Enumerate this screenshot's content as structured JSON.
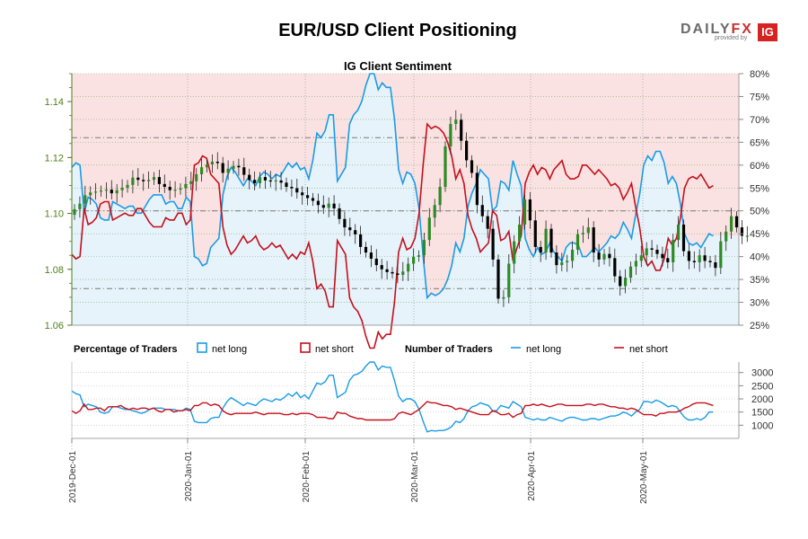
{
  "title": "EUR/USD Client Positioning",
  "logo": {
    "word_main": "DAILY",
    "word_accent": "FX",
    "sub": "provided by",
    "badge": "IG"
  },
  "chart_data": {
    "type": "line",
    "subtitle": "IG Client Sentiment",
    "dates": [
      "2019-Dec-01",
      "2020-Jan-01",
      "2020-Feb-01",
      "2020-Mar-01",
      "2020-Apr-01",
      "2020-May-01"
    ],
    "price_axis": {
      "ylim": [
        1.06,
        1.15
      ],
      "ticks": [
        "1.06",
        "1.08",
        "1.10",
        "1.12",
        "1.14"
      ],
      "color": "#4f7f1c"
    },
    "sentiment_axis": {
      "ylim": [
        25,
        80
      ],
      "ticks": [
        "25%",
        "30%",
        "35%",
        "40%",
        "45%",
        "50%",
        "55%",
        "60%",
        "65%",
        "70%",
        "75%",
        "80%"
      ]
    },
    "count_axis": {
      "ylim": [
        500,
        3400
      ],
      "ticks": [
        "1000",
        "1500",
        "2000",
        "2500",
        "3000"
      ]
    },
    "net_long_pct": [
      59.5,
      60.5,
      60,
      49.5,
      53,
      52.5,
      51.5,
      48.5,
      48,
      48,
      52,
      51.5,
      51,
      50.5,
      51,
      51,
      49.5,
      49.5,
      51,
      52.5,
      53.5,
      53.5,
      53.5,
      51.5,
      52,
      52,
      50.5,
      50.5,
      53,
      52,
      40,
      39.5,
      38,
      38.5,
      42,
      43,
      44,
      53.5,
      57.5,
      59.5,
      58.5,
      57,
      55.5,
      57,
      56.5,
      55.5,
      57.5,
      58.5,
      58,
      57,
      58,
      57.5,
      59,
      60.5,
      59.5,
      60.5,
      59,
      59.5,
      57,
      61,
      67,
      66,
      67.5,
      71,
      71,
      56.5,
      58,
      59.5,
      69,
      71,
      72,
      74,
      77.5,
      80,
      80,
      76.5,
      78,
      77,
      77,
      70,
      59,
      56,
      58.5,
      58,
      56,
      50.5,
      40,
      31,
      32,
      31.5,
      32,
      33,
      35,
      38,
      43,
      41,
      44,
      51,
      54,
      56,
      59,
      58,
      57,
      50,
      51,
      56.5,
      56,
      54.5,
      61,
      58,
      55.5,
      44,
      41.5,
      40,
      42,
      40.5,
      41,
      43,
      41,
      40,
      39,
      42,
      43,
      43,
      42.5,
      40,
      40,
      41,
      42,
      41,
      42,
      43,
      44.5,
      44,
      45,
      47.5,
      46,
      44,
      49,
      53.5,
      60,
      62,
      61,
      63,
      63,
      60.5,
      56,
      57.5,
      56,
      51.5,
      45,
      43,
      42.5,
      43,
      42,
      43.5,
      45,
      44.5
    ],
    "count_long": [
      2300,
      2200,
      2150,
      1700,
      1800,
      1750,
      1700,
      1500,
      1450,
      1500,
      1700,
      1700,
      1650,
      1600,
      1600,
      1550,
      1500,
      1450,
      1500,
      1600,
      1650,
      1650,
      1650,
      1600,
      1600,
      1600,
      1550,
      1550,
      1650,
      1600,
      1150,
      1100,
      1100,
      1100,
      1250,
      1300,
      1300,
      1650,
      1900,
      2050,
      1950,
      1850,
      1750,
      1850,
      1800,
      1750,
      1900,
      2000,
      1950,
      1900,
      2000,
      1950,
      2050,
      2200,
      2100,
      2250,
      2050,
      2150,
      2000,
      2300,
      2600,
      2550,
      2650,
      2900,
      2900,
      2050,
      2150,
      2250,
      2700,
      2900,
      2950,
      3050,
      3250,
      3400,
      3400,
      3100,
      3250,
      3200,
      3200,
      2700,
      2100,
      1900,
      2000,
      2000,
      1900,
      1600,
      1150,
      750,
      800,
      780,
      800,
      800,
      850,
      950,
      1150,
      1100,
      1250,
      1550,
      1700,
      1750,
      1850,
      1800,
      1750,
      1550,
      1550,
      1750,
      1700,
      1650,
      1900,
      1800,
      1700,
      1300,
      1250,
      1200,
      1250,
      1200,
      1200,
      1300,
      1250,
      1200,
      1150,
      1250,
      1300,
      1300,
      1250,
      1200,
      1200,
      1250,
      1250,
      1200,
      1250,
      1300,
      1350,
      1350,
      1400,
      1500,
      1450,
      1350,
      1500,
      1600,
      1900,
      1900,
      1850,
      1950,
      1900,
      1800,
      1700,
      1750,
      1700,
      1500,
      1300,
      1200,
      1200,
      1250,
      1200,
      1300,
      1500,
      1500
    ],
    "count_short": [
      1550,
      1450,
      1550,
      1800,
      1600,
      1600,
      1650,
      1650,
      1550,
      1700,
      1700,
      1700,
      1750,
      1650,
      1600,
      1650,
      1600,
      1650,
      1650,
      1600,
      1650,
      1550,
      1500,
      1600,
      1600,
      1500,
      1550,
      1550,
      1600,
      1550,
      1750,
      1750,
      1850,
      1850,
      1750,
      1800,
      1750,
      1550,
      1450,
      1400,
      1450,
      1450,
      1450,
      1450,
      1450,
      1500,
      1450,
      1400,
      1450,
      1450,
      1450,
      1450,
      1400,
      1400,
      1450,
      1400,
      1450,
      1450,
      1450,
      1400,
      1300,
      1300,
      1300,
      1250,
      1250,
      1500,
      1450,
      1450,
      1350,
      1300,
      1250,
      1250,
      1200,
      1200,
      1200,
      1200,
      1200,
      1200,
      1200,
      1250,
      1450,
      1500,
      1450,
      1400,
      1500,
      1600,
      1750,
      1900,
      1850,
      1850,
      1800,
      1750,
      1750,
      1700,
      1600,
      1650,
      1600,
      1550,
      1500,
      1450,
      1400,
      1400,
      1400,
      1550,
      1500,
      1400,
      1400,
      1450,
      1300,
      1400,
      1450,
      1750,
      1750,
      1800,
      1750,
      1800,
      1750,
      1700,
      1750,
      1800,
      1800,
      1750,
      1750,
      1750,
      1750,
      1750,
      1800,
      1800,
      1750,
      1800,
      1800,
      1750,
      1700,
      1700,
      1650,
      1650,
      1600,
      1650,
      1600,
      1500,
      1400,
      1400,
      1400,
      1350,
      1450,
      1450,
      1500,
      1500,
      1500,
      1550,
      1650,
      1700,
      1800,
      1850,
      1850,
      1850,
      1800,
      1750
    ],
    "price_close": [
      1.1015,
      1.1035,
      1.1065,
      1.1075,
      1.1078,
      1.1082,
      1.1085,
      1.1072,
      1.1083,
      1.1092,
      1.1102,
      1.1128,
      1.112,
      1.1115,
      1.112,
      1.113,
      1.1105,
      1.1095,
      1.1083,
      1.1085,
      1.109,
      1.1105,
      1.1115,
      1.114,
      1.1165,
      1.1175,
      1.1185,
      1.118,
      1.1145,
      1.116,
      1.117,
      1.1165,
      1.1138,
      1.112,
      1.1108,
      1.113,
      1.1118,
      1.1115,
      1.1118,
      1.111,
      1.1095,
      1.109,
      1.1075,
      1.1065,
      1.1055,
      1.1045,
      1.103,
      1.102,
      1.1035,
      1.1018,
      1.098,
      1.095,
      1.094,
      1.0925,
      1.088,
      1.086,
      1.0838,
      1.0815,
      1.08,
      1.079,
      1.0785,
      1.078,
      1.0792,
      1.082,
      1.0845,
      1.085,
      1.0905,
      1.0985,
      1.103,
      1.1095,
      1.124,
      1.132,
      1.1335,
      1.126,
      1.119,
      1.1145,
      1.103,
      1.099,
      1.0945,
      1.0835,
      1.0695,
      1.07,
      1.082,
      1.09,
      1.096,
      1.105,
      1.0975,
      1.088,
      1.086,
      1.0945,
      1.086,
      1.0815,
      1.0825,
      1.083,
      1.087,
      1.0925,
      1.093,
      1.095,
      1.086,
      1.0835,
      1.0855,
      1.084,
      1.0775,
      1.074,
      1.077,
      1.081,
      1.083,
      1.085,
      1.0875,
      1.087,
      1.0855,
      1.084,
      1.0825,
      1.0905,
      1.096,
      1.0865,
      1.083,
      1.0825,
      1.085,
      1.083,
      1.0825,
      1.0805,
      1.09,
      1.0935,
      1.099,
      1.095,
      1.092,
      1.092
    ]
  },
  "legend": {
    "pct_title": "Percentage of Traders",
    "count_title": "Number of Traders",
    "net_long": "net long",
    "net_short": "net short"
  },
  "colors": {
    "long": "#1a9be6",
    "short": "#c4101c",
    "long_fill": "#e6f3fb",
    "short_fill": "#fbe2e2",
    "candle_up": "#2e8b24",
    "candle_down": "#000000",
    "price_axis": "#4f7f1c"
  }
}
